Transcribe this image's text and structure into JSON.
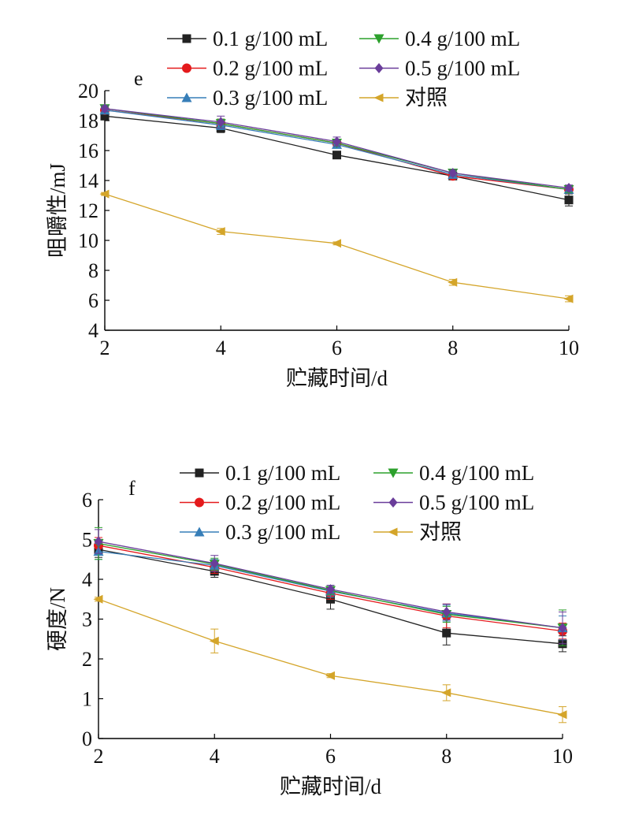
{
  "chart_data": [
    {
      "type": "line",
      "panel_label": "e",
      "xlabel": "贮藏时间/d",
      "ylabel": "咀嚼性/mJ",
      "x": [
        2,
        4,
        6,
        8,
        10
      ],
      "xticks": [
        "2",
        "4",
        "6",
        "8",
        "10"
      ],
      "xlim": [
        2,
        10
      ],
      "ylim": [
        4,
        20
      ],
      "yticks": [
        "4",
        "6",
        "8",
        "10",
        "12",
        "14",
        "16",
        "18",
        "20"
      ],
      "legend_position": "top",
      "series": [
        {
          "name": "0.1 g/100 mL",
          "marker": "square",
          "color": "#222222",
          "values": [
            18.3,
            17.5,
            15.7,
            14.3,
            12.7
          ],
          "errors": [
            0.2,
            0.3,
            0.2,
            0.2,
            0.4
          ]
        },
        {
          "name": "0.2 g/100 mL",
          "marker": "circle",
          "color": "#e41a1c",
          "values": [
            18.7,
            17.8,
            16.5,
            14.3,
            13.4
          ],
          "errors": [
            0.2,
            0.3,
            0.2,
            0.2,
            0.2
          ]
        },
        {
          "name": "0.3 g/100 mL",
          "marker": "triangle-up",
          "color": "#377eb8",
          "values": [
            18.7,
            17.7,
            16.4,
            14.4,
            13.4
          ],
          "errors": [
            0.2,
            0.3,
            0.2,
            0.2,
            0.2
          ]
        },
        {
          "name": "0.4 g/100 mL",
          "marker": "triangle-down",
          "color": "#2ca02c",
          "values": [
            18.8,
            17.8,
            16.5,
            14.5,
            13.4
          ],
          "errors": [
            0.2,
            0.3,
            0.2,
            0.2,
            0.2
          ]
        },
        {
          "name": "0.5 g/100 mL",
          "marker": "diamond",
          "color": "#6a3d9a",
          "values": [
            18.8,
            17.9,
            16.6,
            14.5,
            13.5
          ],
          "errors": [
            0.2,
            0.4,
            0.3,
            0.2,
            0.2
          ]
        },
        {
          "name": "对照",
          "marker": "triangle-left",
          "color": "#d4a52a",
          "values": [
            13.1,
            10.6,
            9.8,
            7.2,
            6.1
          ],
          "errors": [
            0.1,
            0.2,
            0.1,
            0.2,
            0.2
          ]
        }
      ]
    },
    {
      "type": "line",
      "panel_label": "f",
      "xlabel": "贮藏时间/d",
      "ylabel": "硬度/N",
      "x": [
        2,
        4,
        6,
        8,
        10
      ],
      "xticks": [
        "2",
        "4",
        "6",
        "8",
        "10"
      ],
      "xlim": [
        2,
        10
      ],
      "ylim": [
        0,
        6
      ],
      "yticks": [
        "0",
        "1",
        "2",
        "3",
        "4",
        "5",
        "6"
      ],
      "legend_position": "top",
      "series": [
        {
          "name": "0.1 g/100 mL",
          "marker": "square",
          "color": "#222222",
          "values": [
            4.75,
            4.2,
            3.5,
            2.65,
            2.38
          ],
          "errors": [
            0.2,
            0.15,
            0.25,
            0.3,
            0.2
          ]
        },
        {
          "name": "0.2 g/100 mL",
          "marker": "circle",
          "color": "#e41a1c",
          "values": [
            4.85,
            4.3,
            3.65,
            3.08,
            2.7
          ],
          "errors": [
            0.2,
            0.15,
            0.15,
            0.3,
            0.2
          ]
        },
        {
          "name": "0.3 g/100 mL",
          "marker": "triangle-up",
          "color": "#377eb8",
          "values": [
            4.7,
            4.35,
            3.7,
            3.15,
            2.78
          ],
          "errors": [
            0.2,
            0.15,
            0.15,
            0.2,
            0.3
          ]
        },
        {
          "name": "0.4 g/100 mL",
          "marker": "triangle-down",
          "color": "#2ca02c",
          "values": [
            4.9,
            4.38,
            3.72,
            3.12,
            2.78
          ],
          "errors": [
            0.4,
            0.15,
            0.1,
            0.2,
            0.45
          ]
        },
        {
          "name": "0.5 g/100 mL",
          "marker": "diamond",
          "color": "#6a3d9a",
          "values": [
            4.95,
            4.4,
            3.75,
            3.18,
            2.78
          ],
          "errors": [
            0.3,
            0.2,
            0.1,
            0.2,
            0.4
          ]
        },
        {
          "name": "对照",
          "marker": "triangle-left",
          "color": "#d4a52a",
          "values": [
            3.5,
            2.45,
            1.58,
            1.15,
            0.6
          ],
          "errors": [
            0.05,
            0.3,
            0.05,
            0.2,
            0.2
          ]
        }
      ]
    }
  ]
}
